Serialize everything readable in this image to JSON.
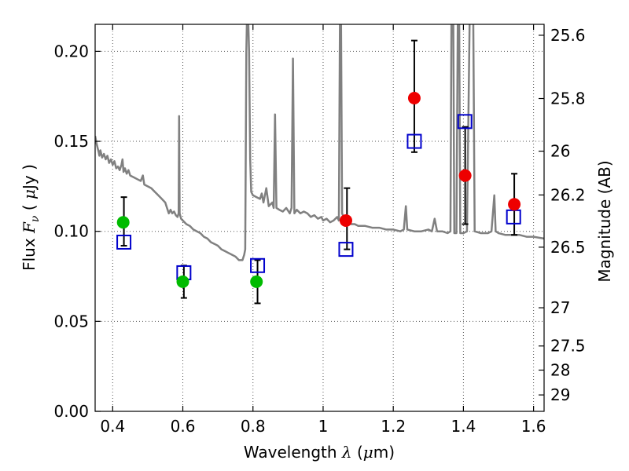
{
  "chart_data": {
    "type": "scatter",
    "xlabel": "Wavelength",
    "xlabel_symbol": "λ",
    "xlabel_unit_open": "(",
    "xlabel_unit_mu": "μ",
    "xlabel_unit_rest": "m)",
    "ylabel": "Flux",
    "ylabel_symbol": "F",
    "ylabel_symbol_sub": "ν",
    "ylabel_unit_open": "(",
    "ylabel_unit_mu": "μ",
    "ylabel_unit_rest": "Jy )",
    "y2label": "Magnitude (AB)",
    "xlim": [
      0.35,
      1.63
    ],
    "ylim": [
      0.0,
      0.215
    ],
    "grid": true,
    "x_ticks": [
      {
        "value": 0.4,
        "label": "0.4"
      },
      {
        "value": 0.6,
        "label": "0.6"
      },
      {
        "value": 0.8,
        "label": "0.8"
      },
      {
        "value": 1.0,
        "label": "1"
      },
      {
        "value": 1.2,
        "label": "1.2"
      },
      {
        "value": 1.4,
        "label": "1.4"
      },
      {
        "value": 1.6,
        "label": "1.6"
      }
    ],
    "y_ticks": [
      {
        "value": 0.0,
        "label": "0.00"
      },
      {
        "value": 0.05,
        "label": "0.05"
      },
      {
        "value": 0.1,
        "label": "0.10"
      },
      {
        "value": 0.15,
        "label": "0.15"
      },
      {
        "value": 0.2,
        "label": "0.20"
      }
    ],
    "y2_ticks": [
      {
        "mag": 25.6,
        "label": "25.6"
      },
      {
        "mag": 25.8,
        "label": "25.8"
      },
      {
        "mag": 26.0,
        "label": "26"
      },
      {
        "mag": 26.2,
        "label": "26.2"
      },
      {
        "mag": 26.5,
        "label": "26.5"
      },
      {
        "mag": 27.0,
        "label": "27"
      },
      {
        "mag": 27.5,
        "label": "27.5"
      },
      {
        "mag": 28.0,
        "label": "28"
      },
      {
        "mag": 29.0,
        "label": "29"
      }
    ],
    "series": [
      {
        "kind": "line",
        "color": "#808080",
        "points": [
          [
            0.35,
            0.153
          ],
          [
            0.355,
            0.148
          ],
          [
            0.36,
            0.144
          ],
          [
            0.362,
            0.142
          ],
          [
            0.365,
            0.145
          ],
          [
            0.37,
            0.141
          ],
          [
            0.375,
            0.143
          ],
          [
            0.38,
            0.14
          ],
          [
            0.385,
            0.142
          ],
          [
            0.39,
            0.138
          ],
          [
            0.395,
            0.14
          ],
          [
            0.4,
            0.137
          ],
          [
            0.405,
            0.139
          ],
          [
            0.41,
            0.135
          ],
          [
            0.415,
            0.136
          ],
          [
            0.42,
            0.134
          ],
          [
            0.425,
            0.137
          ],
          [
            0.428,
            0.14
          ],
          [
            0.431,
            0.133
          ],
          [
            0.435,
            0.135
          ],
          [
            0.44,
            0.132
          ],
          [
            0.445,
            0.134
          ],
          [
            0.45,
            0.131
          ],
          [
            0.46,
            0.13
          ],
          [
            0.47,
            0.129
          ],
          [
            0.48,
            0.128
          ],
          [
            0.486,
            0.131
          ],
          [
            0.49,
            0.126
          ],
          [
            0.5,
            0.125
          ],
          [
            0.51,
            0.124
          ],
          [
            0.52,
            0.122
          ],
          [
            0.53,
            0.12
          ],
          [
            0.54,
            0.118
          ],
          [
            0.55,
            0.116
          ],
          [
            0.555,
            0.113
          ],
          [
            0.56,
            0.11
          ],
          [
            0.565,
            0.112
          ],
          [
            0.57,
            0.11
          ],
          [
            0.575,
            0.111
          ],
          [
            0.58,
            0.109
          ],
          [
            0.585,
            0.108
          ],
          [
            0.588,
            0.11
          ],
          [
            0.5895,
            0.164
          ],
          [
            0.591,
            0.11
          ],
          [
            0.595,
            0.107
          ],
          [
            0.6,
            0.106
          ],
          [
            0.61,
            0.104
          ],
          [
            0.62,
            0.103
          ],
          [
            0.63,
            0.101
          ],
          [
            0.64,
            0.1
          ],
          [
            0.65,
            0.099
          ],
          [
            0.66,
            0.097
          ],
          [
            0.67,
            0.096
          ],
          [
            0.68,
            0.094
          ],
          [
            0.69,
            0.093
          ],
          [
            0.7,
            0.092
          ],
          [
            0.71,
            0.09
          ],
          [
            0.72,
            0.089
          ],
          [
            0.73,
            0.088
          ],
          [
            0.74,
            0.087
          ],
          [
            0.75,
            0.086
          ],
          [
            0.76,
            0.084
          ],
          [
            0.77,
            0.084
          ],
          [
            0.775,
            0.087
          ],
          [
            0.778,
            0.09
          ],
          [
            0.781,
            0.2
          ],
          [
            0.783,
            0.22
          ],
          [
            0.786,
            0.22
          ],
          [
            0.789,
            0.2
          ],
          [
            0.792,
            0.14
          ],
          [
            0.795,
            0.122
          ],
          [
            0.8,
            0.12
          ],
          [
            0.81,
            0.119
          ],
          [
            0.82,
            0.118
          ],
          [
            0.825,
            0.121
          ],
          [
            0.83,
            0.116
          ],
          [
            0.838,
            0.124
          ],
          [
            0.845,
            0.114
          ],
          [
            0.855,
            0.116
          ],
          [
            0.859,
            0.113
          ],
          [
            0.863,
            0.165
          ],
          [
            0.867,
            0.113
          ],
          [
            0.875,
            0.112
          ],
          [
            0.885,
            0.111
          ],
          [
            0.895,
            0.113
          ],
          [
            0.905,
            0.11
          ],
          [
            0.91,
            0.113
          ],
          [
            0.914,
            0.196
          ],
          [
            0.918,
            0.11
          ],
          [
            0.925,
            0.112
          ],
          [
            0.935,
            0.11
          ],
          [
            0.945,
            0.111
          ],
          [
            0.955,
            0.11
          ],
          [
            0.965,
            0.108
          ],
          [
            0.975,
            0.109
          ],
          [
            0.985,
            0.107
          ],
          [
            0.995,
            0.108
          ],
          [
            1.0,
            0.106
          ],
          [
            1.01,
            0.107
          ],
          [
            1.02,
            0.105
          ],
          [
            1.03,
            0.106
          ],
          [
            1.04,
            0.108
          ],
          [
            1.045,
            0.106
          ],
          [
            1.048,
            0.22
          ],
          [
            1.051,
            0.22
          ],
          [
            1.054,
            0.11
          ],
          [
            1.06,
            0.107
          ],
          [
            1.07,
            0.105
          ],
          [
            1.08,
            0.104
          ],
          [
            1.09,
            0.104
          ],
          [
            1.1,
            0.103
          ],
          [
            1.12,
            0.103
          ],
          [
            1.14,
            0.102
          ],
          [
            1.16,
            0.102
          ],
          [
            1.18,
            0.101
          ],
          [
            1.2,
            0.101
          ],
          [
            1.22,
            0.1
          ],
          [
            1.23,
            0.101
          ],
          [
            1.236,
            0.114
          ],
          [
            1.24,
            0.101
          ],
          [
            1.26,
            0.1
          ],
          [
            1.28,
            0.1
          ],
          [
            1.3,
            0.101
          ],
          [
            1.31,
            0.1
          ],
          [
            1.318,
            0.107
          ],
          [
            1.325,
            0.1
          ],
          [
            1.34,
            0.1
          ],
          [
            1.355,
            0.099
          ],
          [
            1.363,
            0.1
          ],
          [
            1.366,
            0.22
          ],
          [
            1.371,
            0.22
          ],
          [
            1.374,
            0.099
          ],
          [
            1.38,
            0.099
          ],
          [
            1.384,
            0.22
          ],
          [
            1.388,
            0.22
          ],
          [
            1.391,
            0.099
          ],
          [
            1.4,
            0.099
          ],
          [
            1.41,
            0.1
          ],
          [
            1.418,
            0.22
          ],
          [
            1.428,
            0.22
          ],
          [
            1.432,
            0.1
          ],
          [
            1.45,
            0.099
          ],
          [
            1.47,
            0.099
          ],
          [
            1.48,
            0.1
          ],
          [
            1.488,
            0.12
          ],
          [
            1.492,
            0.1
          ],
          [
            1.5,
            0.099
          ],
          [
            1.52,
            0.098
          ],
          [
            1.54,
            0.098
          ],
          [
            1.56,
            0.098
          ],
          [
            1.58,
            0.097
          ],
          [
            1.6,
            0.097
          ],
          [
            1.63,
            0.096
          ]
        ]
      },
      {
        "kind": "points",
        "marker": "circle",
        "color": "#00bb00",
        "points": [
          [
            0.43,
            0.105
          ],
          [
            0.6,
            0.072
          ],
          [
            0.81,
            0.072
          ]
        ]
      },
      {
        "kind": "points",
        "marker": "circle",
        "color": "#ee0000",
        "points": [
          [
            1.065,
            0.106
          ],
          [
            1.26,
            0.174
          ],
          [
            1.405,
            0.131
          ],
          [
            1.545,
            0.115
          ]
        ]
      },
      {
        "kind": "points",
        "marker": "open-square",
        "color": "#0000cc",
        "points": [
          [
            0.432,
            0.094
          ],
          [
            0.603,
            0.077
          ],
          [
            0.813,
            0.081
          ],
          [
            1.065,
            0.09
          ],
          [
            1.26,
            0.15
          ],
          [
            1.404,
            0.161
          ],
          [
            1.543,
            0.108
          ]
        ]
      },
      {
        "kind": "errorbars",
        "color": "#000000",
        "bars": [
          {
            "x": 0.432,
            "low": 0.092,
            "high": 0.119
          },
          {
            "x": 0.603,
            "low": 0.063,
            "high": 0.081
          },
          {
            "x": 0.813,
            "low": 0.06,
            "high": 0.084
          },
          {
            "x": 1.068,
            "low": 0.09,
            "high": 0.124
          },
          {
            "x": 1.26,
            "low": 0.144,
            "high": 0.206
          },
          {
            "x": 1.405,
            "low": 0.104,
            "high": 0.158
          },
          {
            "x": 1.545,
            "low": 0.098,
            "high": 0.132
          }
        ]
      }
    ]
  }
}
